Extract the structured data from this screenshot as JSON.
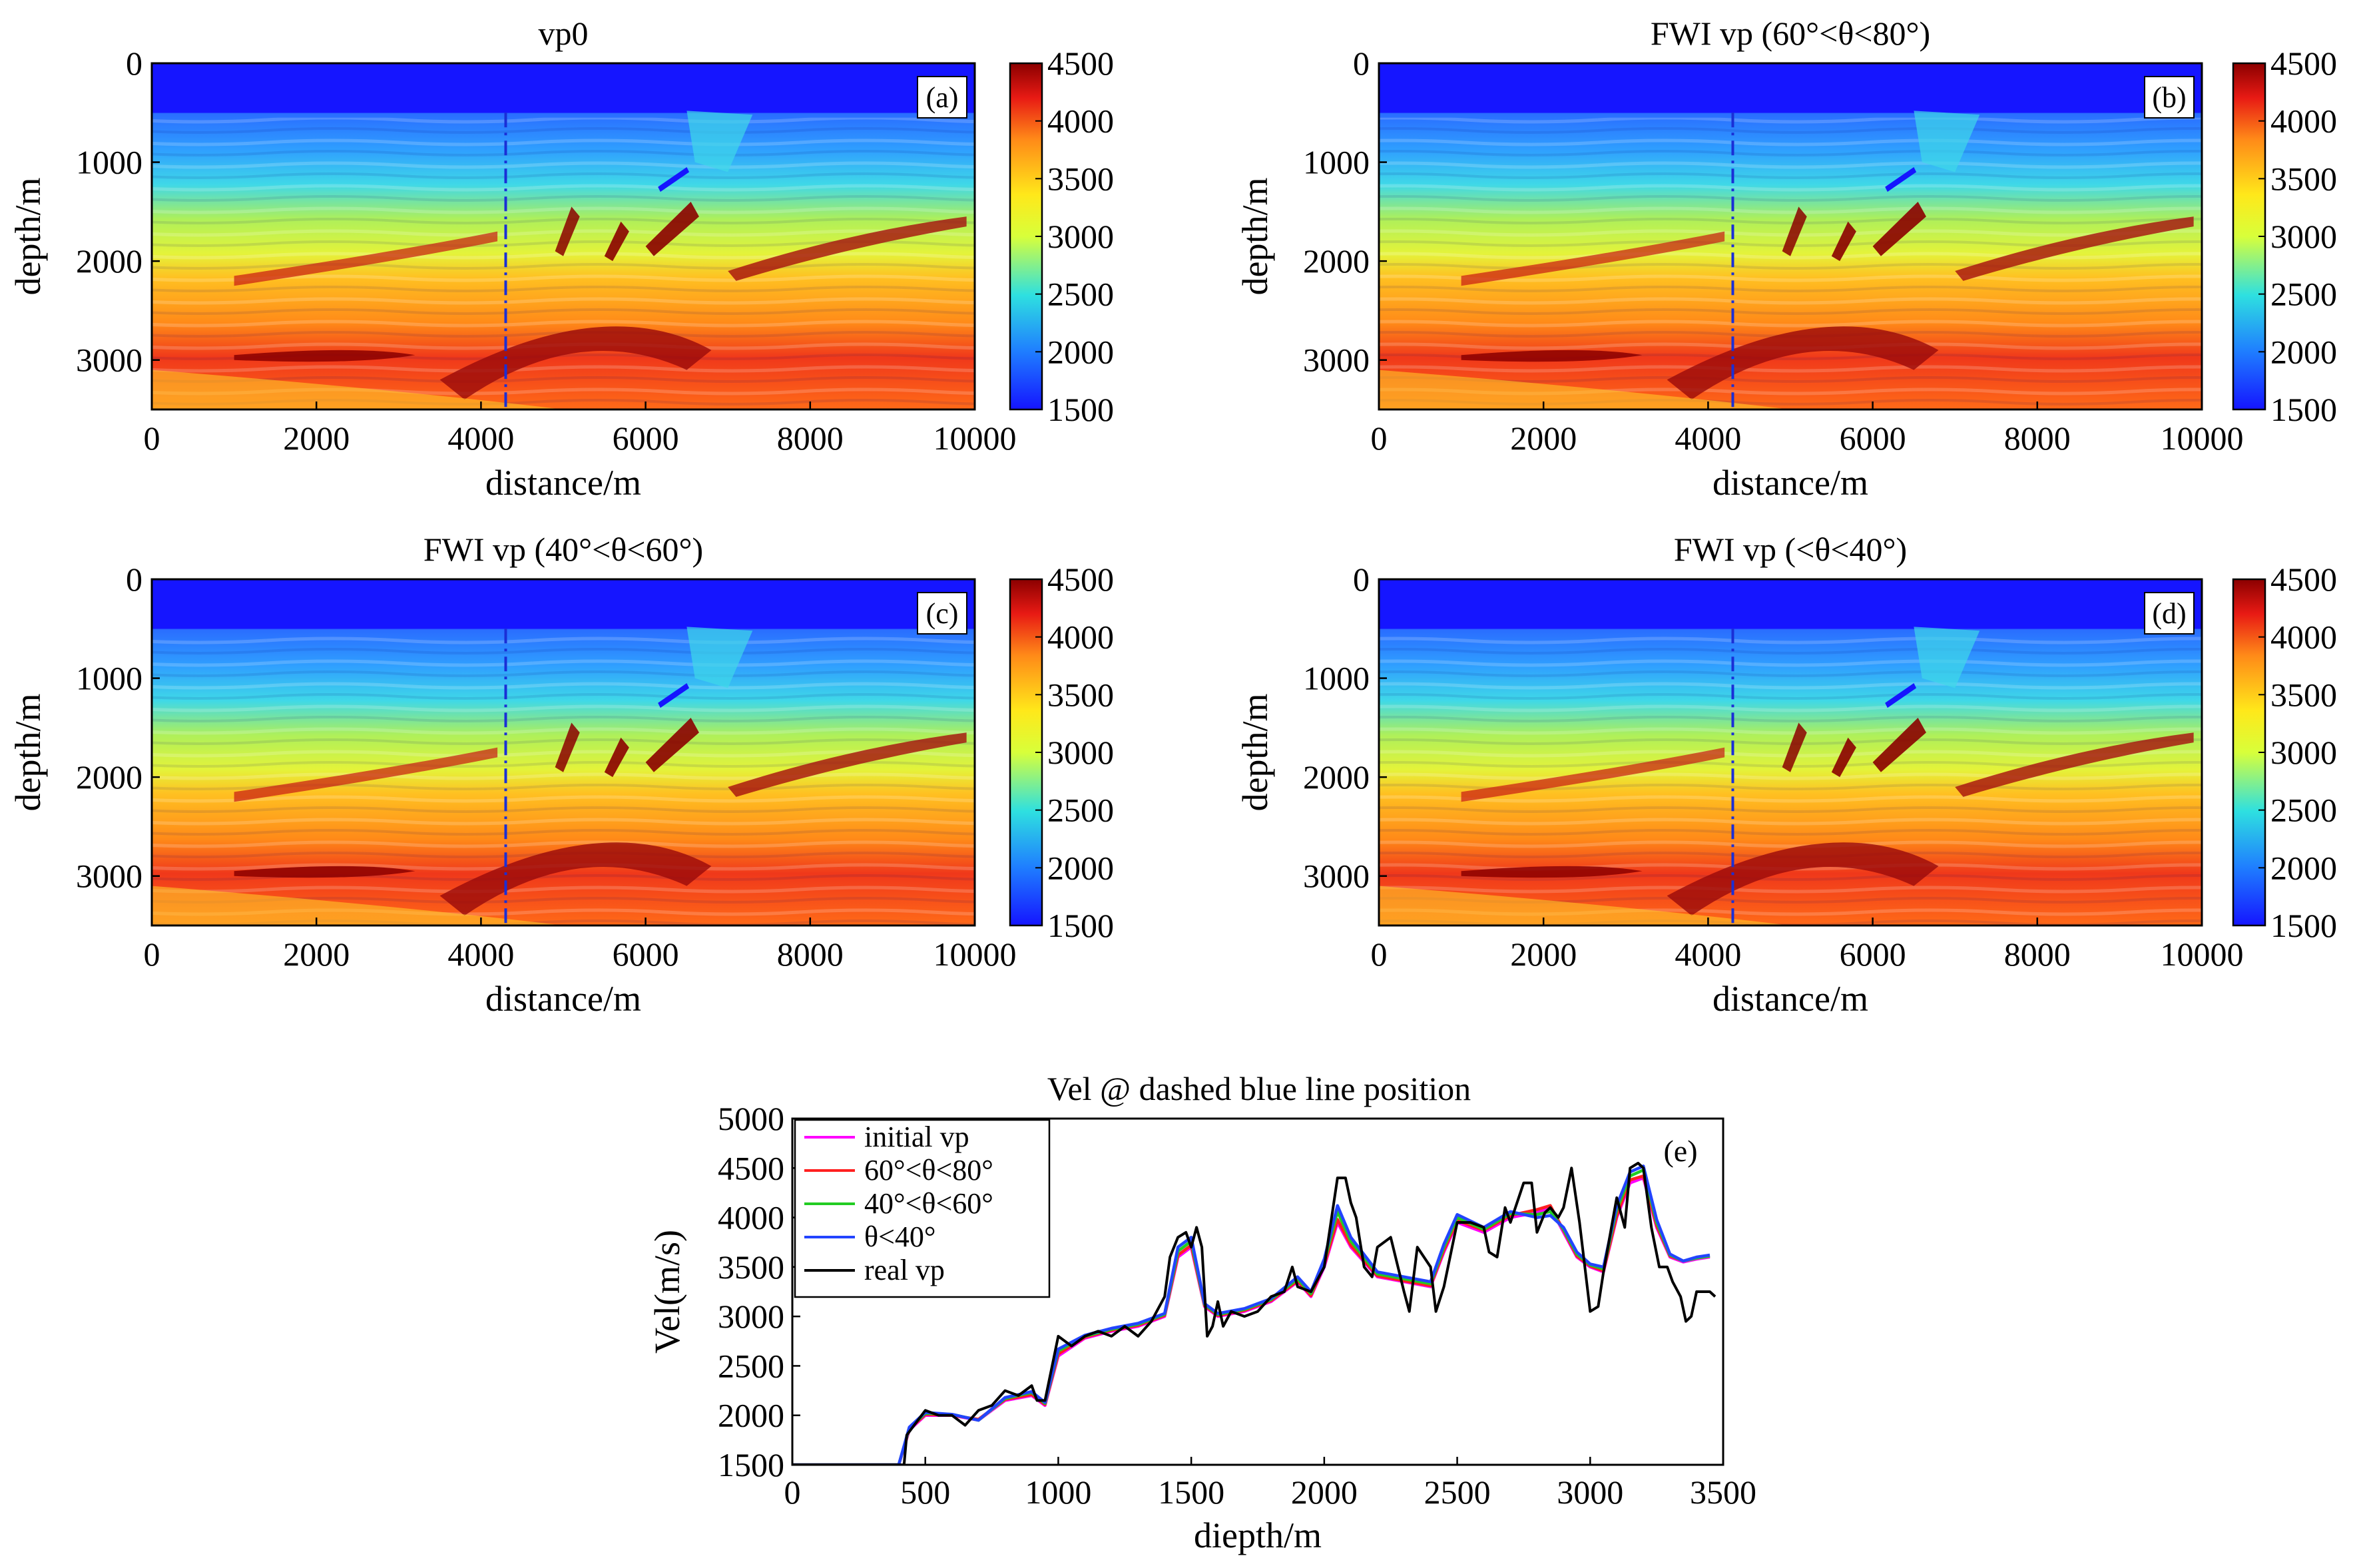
{
  "chart_data": [
    {
      "type": "heatmap",
      "panel": "a",
      "title": "vp0",
      "tag": "(a)",
      "xlabel": "distance/m",
      "ylabel": "depth/m",
      "xlim": [
        0,
        10000
      ],
      "ylim": [
        0,
        3500
      ],
      "xticks": [
        "0",
        "2000",
        "4000",
        "6000",
        "8000",
        "10000"
      ],
      "yticks": [
        "0",
        "1000",
        "2000",
        "3000"
      ],
      "colorbar": {
        "min": 1500,
        "max": 4500,
        "ticks": [
          "4500",
          "4000",
          "3500",
          "3000",
          "2500",
          "2000",
          "1500"
        ]
      },
      "dashed_line_distance": 4300
    },
    {
      "type": "heatmap",
      "panel": "b",
      "title": "FWI vp (60°<θ<80°)",
      "tag": "(b)",
      "xlabel": "distance/m",
      "ylabel": "depth/m",
      "xlim": [
        0,
        10000
      ],
      "ylim": [
        0,
        3500
      ],
      "xticks": [
        "0",
        "2000",
        "4000",
        "6000",
        "8000",
        "10000"
      ],
      "yticks": [
        "0",
        "1000",
        "2000",
        "3000"
      ],
      "colorbar": {
        "min": 1500,
        "max": 4500,
        "ticks": [
          "4500",
          "4000",
          "3500",
          "3000",
          "2500",
          "2000",
          "1500"
        ]
      },
      "dashed_line_distance": 4300
    },
    {
      "type": "heatmap",
      "panel": "c",
      "title": "FWI vp (40°<θ<60°)",
      "tag": "(c)",
      "xlabel": "distance/m",
      "ylabel": "depth/m",
      "xlim": [
        0,
        10000
      ],
      "ylim": [
        0,
        3500
      ],
      "xticks": [
        "0",
        "2000",
        "4000",
        "6000",
        "8000",
        "10000"
      ],
      "yticks": [
        "0",
        "1000",
        "2000",
        "3000"
      ],
      "colorbar": {
        "min": 1500,
        "max": 4500,
        "ticks": [
          "4500",
          "4000",
          "3500",
          "3000",
          "2500",
          "2000",
          "1500"
        ]
      },
      "dashed_line_distance": 4300
    },
    {
      "type": "heatmap",
      "panel": "d",
      "title": "FWI vp (<θ<40°)",
      "tag": "(d)",
      "xlabel": "distance/m",
      "ylabel": "depth/m",
      "xlim": [
        0,
        10000
      ],
      "ylim": [
        0,
        3500
      ],
      "xticks": [
        "0",
        "2000",
        "4000",
        "6000",
        "8000",
        "10000"
      ],
      "yticks": [
        "0",
        "1000",
        "2000",
        "3000"
      ],
      "colorbar": {
        "min": 1500,
        "max": 4500,
        "ticks": [
          "4500",
          "4000",
          "3500",
          "3000",
          "2500",
          "2000",
          "1500"
        ]
      },
      "dashed_line_distance": 4300
    },
    {
      "type": "line",
      "panel": "e",
      "title": "Vel @ dashed blue line position",
      "tag": "(e)",
      "xlabel": "diepth/m",
      "ylabel": "Vel(m/s)",
      "xlim": [
        0,
        3500
      ],
      "ylim": [
        1500,
        5000
      ],
      "xticks": [
        "0",
        "500",
        "1000",
        "1500",
        "2000",
        "2500",
        "3000",
        "3500"
      ],
      "yticks": [
        "5000",
        "4500",
        "4000",
        "3500",
        "3000",
        "2500",
        "2000",
        "1500"
      ],
      "legend_position": "top-left",
      "series": [
        {
          "name": "initial vp",
          "color": "#ff00ff",
          "x": [
            0,
            400,
            440,
            500,
            600,
            700,
            800,
            900,
            950,
            1000,
            1100,
            1200,
            1300,
            1400,
            1450,
            1500,
            1550,
            1600,
            1700,
            1800,
            1900,
            1950,
            2000,
            2050,
            2100,
            2200,
            2300,
            2400,
            2450,
            2500,
            2600,
            2700,
            2800,
            2850,
            2900,
            2950,
            3000,
            3050,
            3100,
            3150,
            3200,
            3250,
            3300,
            3350,
            3400,
            3450
          ],
          "y": [
            1500,
            1500,
            1850,
            2000,
            2000,
            1950,
            2150,
            2200,
            2100,
            2600,
            2780,
            2850,
            2900,
            3000,
            3600,
            3700,
            3100,
            3000,
            3050,
            3150,
            3350,
            3200,
            3500,
            3950,
            3700,
            3400,
            3350,
            3300,
            3650,
            3950,
            3850,
            4000,
            4050,
            4100,
            3850,
            3600,
            3500,
            3450,
            4000,
            4350,
            4400,
            3900,
            3600,
            3550,
            3580,
            3600
          ]
        },
        {
          "name": "60°<θ<80°",
          "color": "#ff2020",
          "x": [
            0,
            400,
            440,
            500,
            600,
            700,
            800,
            900,
            950,
            1000,
            1100,
            1200,
            1300,
            1400,
            1450,
            1500,
            1550,
            1600,
            1700,
            1800,
            1900,
            1950,
            2000,
            2050,
            2100,
            2200,
            2300,
            2400,
            2450,
            2500,
            2600,
            2700,
            2800,
            2850,
            2900,
            2950,
            3000,
            3050,
            3100,
            3150,
            3200,
            3250,
            3300,
            3350,
            3400,
            3450
          ],
          "y": [
            1500,
            1500,
            1860,
            2010,
            2000,
            1960,
            2160,
            2210,
            2110,
            2620,
            2790,
            2860,
            2910,
            3010,
            3620,
            3720,
            3110,
            3010,
            3060,
            3160,
            3360,
            3210,
            3520,
            3980,
            3720,
            3410,
            3360,
            3310,
            3670,
            3970,
            3870,
            4020,
            4080,
            4120,
            3870,
            3610,
            3510,
            3460,
            4020,
            4380,
            4420,
            3920,
            3610,
            3560,
            3590,
            3610
          ]
        },
        {
          "name": "40°<θ<60°",
          "color": "#22cc22",
          "x": [
            0,
            400,
            440,
            500,
            600,
            700,
            800,
            900,
            950,
            1000,
            1100,
            1200,
            1300,
            1400,
            1450,
            1500,
            1550,
            1600,
            1700,
            1800,
            1900,
            1950,
            2000,
            2050,
            2100,
            2200,
            2300,
            2400,
            2450,
            2500,
            2600,
            2700,
            2800,
            2850,
            2900,
            2950,
            3000,
            3050,
            3100,
            3150,
            3200,
            3250,
            3300,
            3350,
            3400,
            3450
          ],
          "y": [
            1500,
            1500,
            1870,
            2020,
            2010,
            1950,
            2170,
            2230,
            2120,
            2650,
            2800,
            2870,
            2920,
            3020,
            3660,
            3760,
            3120,
            3020,
            3070,
            3170,
            3380,
            3230,
            3550,
            4060,
            3760,
            3430,
            3380,
            3330,
            3700,
            4000,
            3880,
            4040,
            4030,
            4060,
            3880,
            3630,
            3520,
            3480,
            4080,
            4420,
            4480,
            3950,
            3620,
            3560,
            3590,
            3610
          ]
        },
        {
          "name": "θ<40°",
          "color": "#2244ff",
          "x": [
            0,
            400,
            440,
            500,
            600,
            700,
            800,
            900,
            950,
            1000,
            1100,
            1200,
            1300,
            1400,
            1450,
            1500,
            1550,
            1600,
            1700,
            1800,
            1900,
            1950,
            2000,
            2050,
            2100,
            2200,
            2300,
            2400,
            2450,
            2500,
            2600,
            2700,
            2800,
            2850,
            2900,
            2950,
            3000,
            3050,
            3100,
            3150,
            3200,
            3250,
            3300,
            3350,
            3400,
            3450
          ],
          "y": [
            1500,
            1500,
            1880,
            2030,
            2010,
            1950,
            2180,
            2240,
            2130,
            2670,
            2810,
            2880,
            2930,
            3030,
            3700,
            3800,
            3130,
            3030,
            3080,
            3180,
            3400,
            3250,
            3580,
            4120,
            3800,
            3450,
            3400,
            3350,
            3730,
            4030,
            3900,
            4060,
            4000,
            4020,
            3900,
            3650,
            3530,
            3500,
            4120,
            4460,
            4520,
            3980,
            3630,
            3560,
            3600,
            3620
          ]
        },
        {
          "name": "real vp",
          "color": "#000000",
          "x": [
            0,
            420,
            430,
            500,
            550,
            600,
            650,
            700,
            750,
            800,
            850,
            900,
            920,
            950,
            1000,
            1050,
            1100,
            1150,
            1200,
            1250,
            1300,
            1350,
            1400,
            1420,
            1450,
            1480,
            1500,
            1520,
            1540,
            1560,
            1580,
            1600,
            1620,
            1650,
            1700,
            1750,
            1800,
            1850,
            1880,
            1900,
            1950,
            2000,
            2050,
            2080,
            2100,
            2120,
            2150,
            2180,
            2200,
            2250,
            2300,
            2320,
            2350,
            2400,
            2420,
            2450,
            2500,
            2550,
            2600,
            2620,
            2650,
            2680,
            2700,
            2750,
            2780,
            2800,
            2830,
            2850,
            2880,
            2900,
            2930,
            2960,
            3000,
            3030,
            3050,
            3080,
            3100,
            3130,
            3150,
            3180,
            3200,
            3230,
            3260,
            3290,
            3310,
            3340,
            3360,
            3380,
            3400,
            3430,
            3450,
            3470
          ],
          "y": [
            1500,
            1500,
            1800,
            2050,
            2000,
            2000,
            1900,
            2050,
            2100,
            2250,
            2200,
            2300,
            2150,
            2150,
            2800,
            2700,
            2800,
            2850,
            2800,
            2900,
            2800,
            2950,
            3200,
            3600,
            3800,
            3850,
            3700,
            3900,
            3700,
            2800,
            2900,
            3150,
            2900,
            3050,
            3000,
            3050,
            3200,
            3250,
            3500,
            3300,
            3250,
            3500,
            4400,
            4400,
            4150,
            4000,
            3500,
            3400,
            3700,
            3800,
            3250,
            3050,
            3700,
            3500,
            3050,
            3300,
            3950,
            3950,
            3900,
            3650,
            3600,
            4100,
            3950,
            4350,
            4350,
            3850,
            4050,
            4100,
            4000,
            4100,
            4500,
            3950,
            3050,
            3100,
            3450,
            3900,
            4200,
            3900,
            4500,
            4550,
            4500,
            3900,
            3500,
            3500,
            3350,
            3200,
            2950,
            3000,
            3250,
            3250,
            3250,
            3200
          ]
        }
      ]
    }
  ]
}
